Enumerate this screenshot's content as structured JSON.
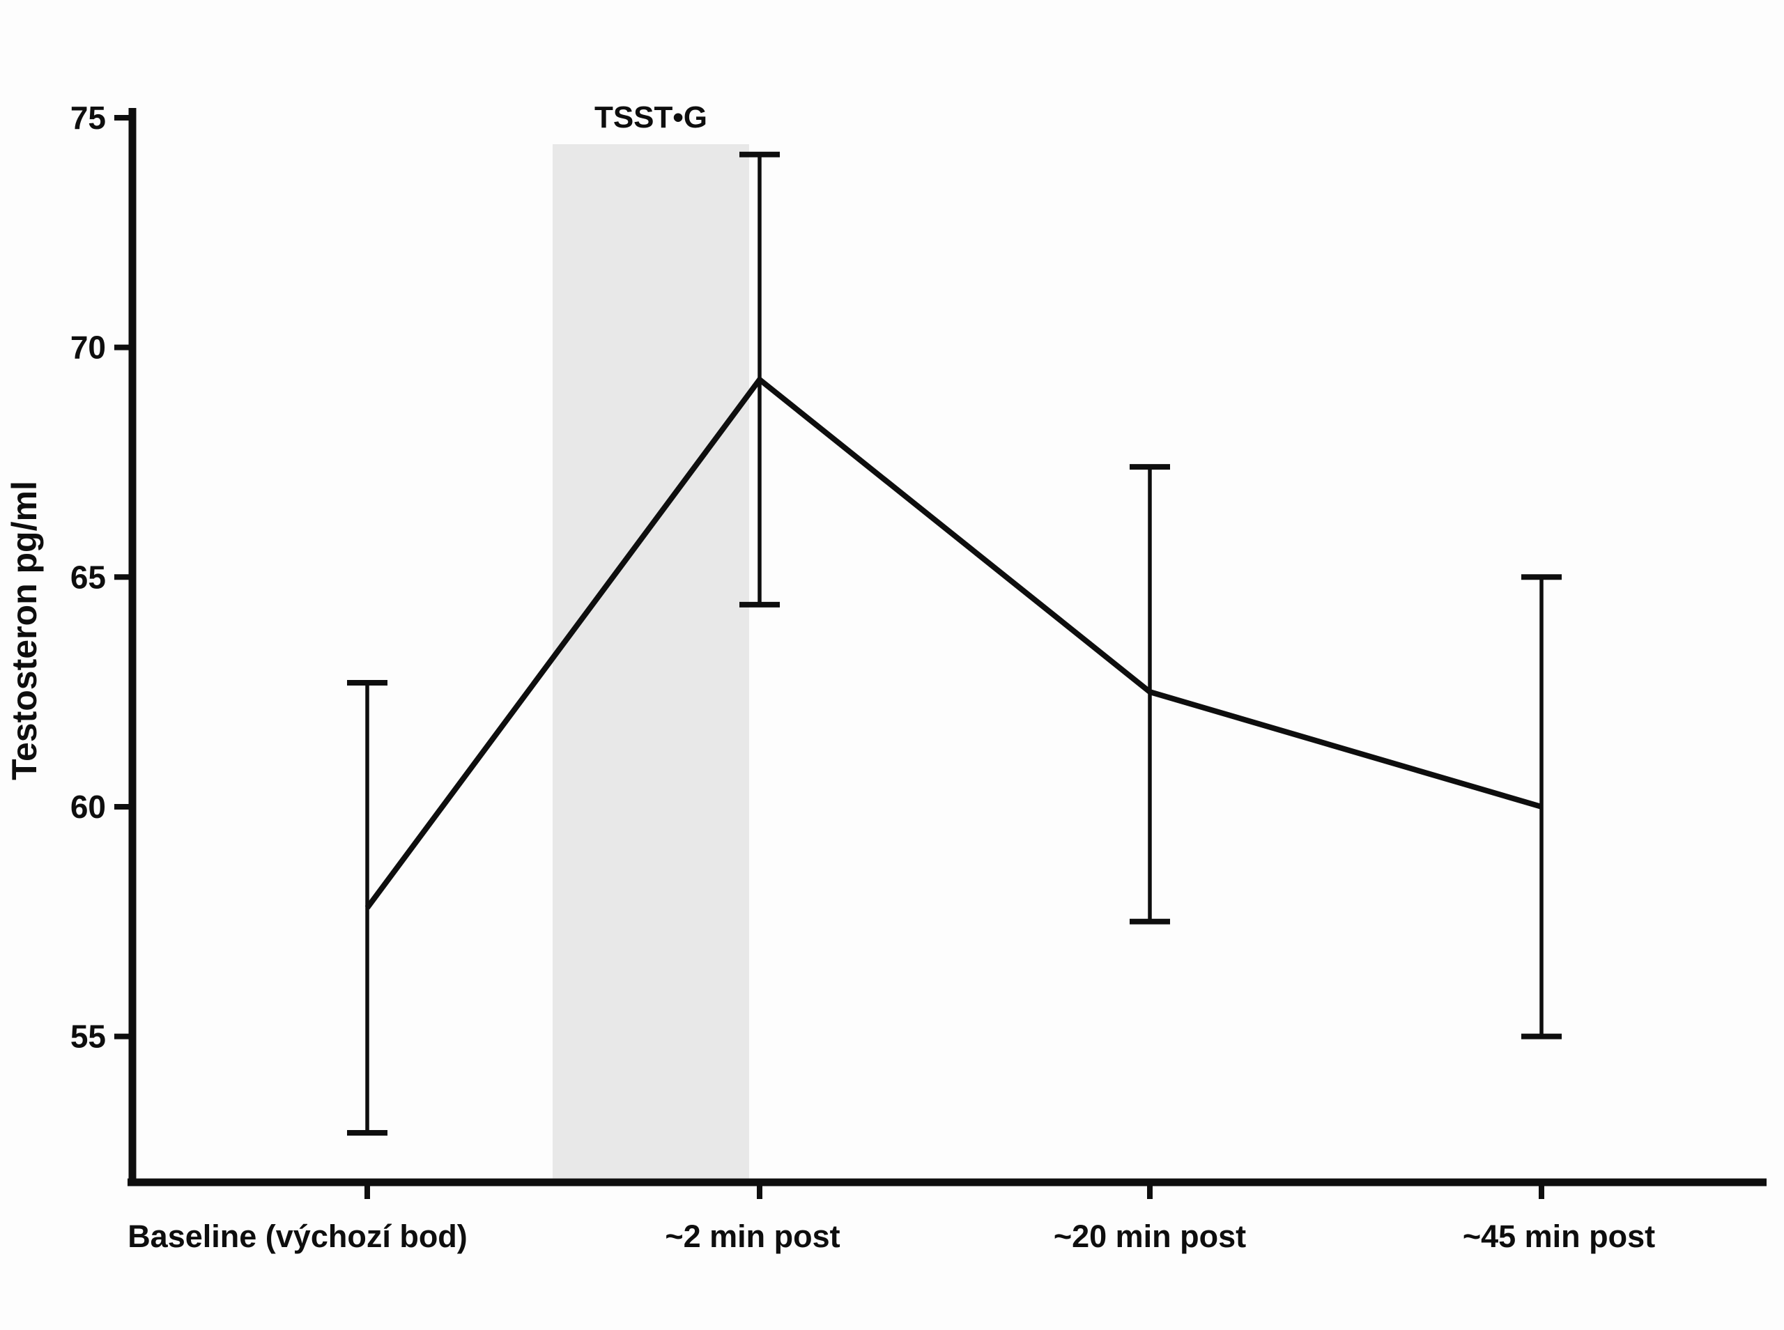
{
  "chart_data": {
    "type": "line",
    "title": "",
    "xlabel": "",
    "ylabel": "Testosteron pg/ml",
    "categories": [
      "Baseline (výchozí bod)",
      "~2 min post",
      "~20 min post",
      "~45 min post"
    ],
    "series": [
      {
        "name": "Testosteron",
        "values": [
          57.8,
          69.3,
          62.5,
          60.0
        ],
        "error_upper": [
          62.7,
          74.2,
          67.4,
          65.0
        ],
        "error_lower": [
          52.9,
          64.4,
          57.5,
          55.0
        ]
      }
    ],
    "yticks": [
      55,
      60,
      65,
      70,
      75
    ],
    "ylim": [
      51.9,
      75.2
    ],
    "grid": false,
    "legend": "none",
    "band": {
      "label": "TSST•G",
      "color": "#e8e8e8",
      "from_category_frac": 0.47,
      "to_category_frac": 0.97,
      "description": "shaded stressor period between Baseline and ~2 min post, label centered above band"
    }
  },
  "colors": {
    "line": "#0e0e0e",
    "axis": "#0e0e0e",
    "text": "#0e0e0e",
    "band": "#e8e8e8",
    "background": "#fdfdfd"
  }
}
